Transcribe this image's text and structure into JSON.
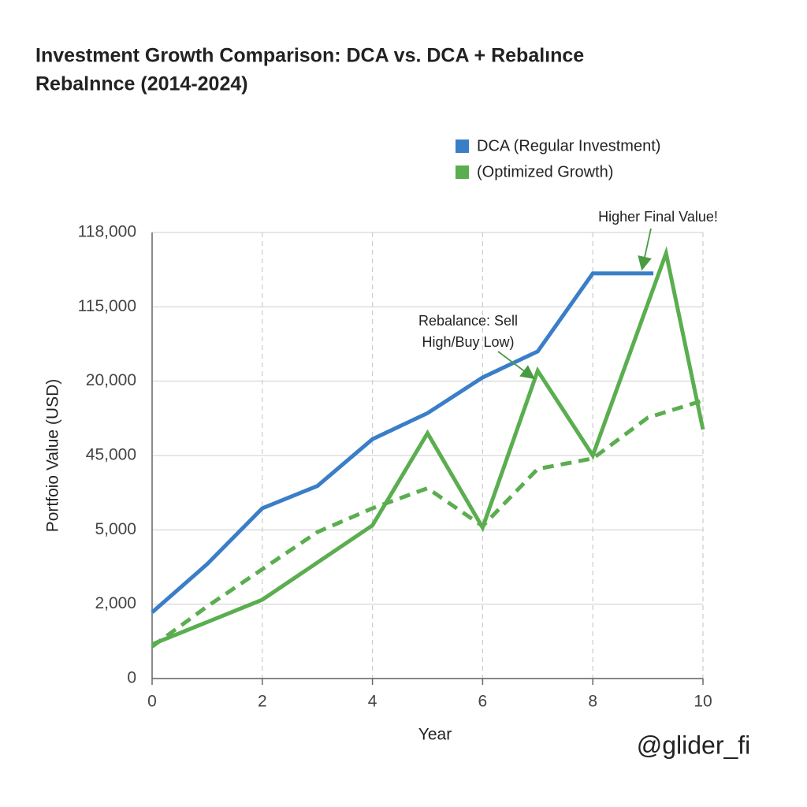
{
  "chart_data": {
    "type": "line",
    "title": [
      "Investment Growth Comparison: DCA vs. DCA + Rebalınce",
      "Rebalnnce (2014-2024)"
    ],
    "xlabel": "Year",
    "ylabel": "Portfoio Value (USD)",
    "xlim": [
      0,
      10
    ],
    "xticks": [
      0,
      2,
      4,
      6,
      8,
      10
    ],
    "ylim": [
      0,
      6
    ],
    "yticks": [
      0,
      {
        "value": 1,
        "label": "2,000"
      },
      {
        "value": 2,
        "label": "5,000"
      },
      {
        "value": 3,
        "label": "45,000"
      },
      {
        "value": 4,
        "label": "20,000"
      },
      {
        "value": 5,
        "label": "115,000"
      },
      {
        "value": 6,
        "label": "118,000"
      }
    ],
    "grid": true,
    "series": [
      {
        "name": "DCA (Regular Investment)",
        "color": "#3a7ec8",
        "x": [
          0,
          1,
          2,
          3,
          4,
          5,
          6,
          7,
          8,
          9.1
        ],
        "values": [
          0.89,
          1.54,
          2.29,
          2.59,
          3.22,
          3.57,
          4.05,
          4.4,
          5.45,
          5.45
        ]
      },
      {
        "name": "(Optimized Growth)",
        "color": "#5aae4f",
        "x": [
          0,
          2,
          4,
          5,
          6,
          7,
          8,
          9.33,
          10
        ],
        "values": [
          0.46,
          1.06,
          2.06,
          3.3,
          2.03,
          4.14,
          3.0,
          5.72,
          3.35
        ]
      },
      {
        "color": "#5aae4f",
        "dashed": true,
        "x": [
          0,
          1,
          2,
          3,
          4,
          5,
          6,
          7,
          8,
          9,
          10
        ],
        "values": [
          0.43,
          0.97,
          1.47,
          1.97,
          2.29,
          2.56,
          2.05,
          2.82,
          2.96,
          3.51,
          3.74
        ]
      }
    ],
    "annotations": [
      {
        "text": [
          "Higher Final Value!"
        ]
      },
      {
        "text": [
          "Rebalance: Sell",
          "High/Buy Low)"
        ]
      }
    ],
    "watermark": "@glider_fi"
  }
}
